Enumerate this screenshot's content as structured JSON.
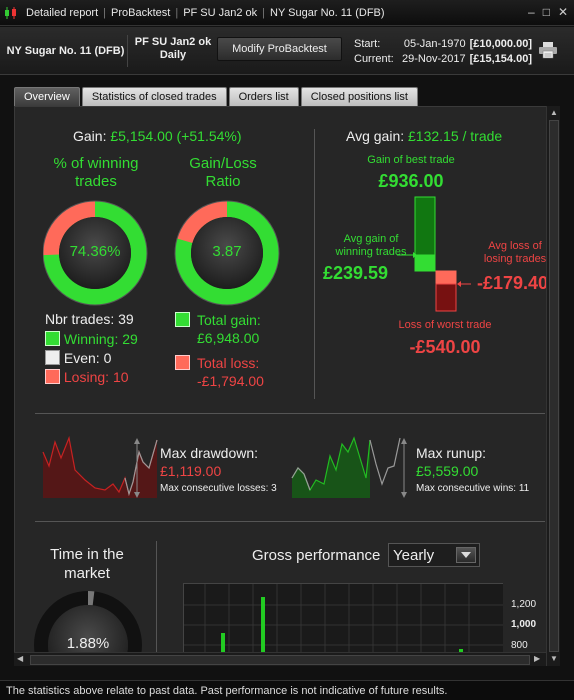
{
  "titlebar": {
    "segments": [
      "Detailed report",
      "ProBacktest",
      "PF SU Jan2 ok",
      "NY Sugar No. 11 (DFB)"
    ]
  },
  "infobar": {
    "instrument": "NY Sugar No. 11 (DFB)",
    "strategy_line1": "PF SU Jan2 ok",
    "strategy_line2": "Daily",
    "modify_button": "Modify ProBacktest",
    "start_label": "Start:",
    "start_date": "05-Jan-1970",
    "start_amount": "[£10,000.00]",
    "current_label": "Current:",
    "current_date": "29-Nov-2017",
    "current_amount": "[£15,154.00]"
  },
  "tabs": [
    "Overview",
    "Statistics of closed trades",
    "Orders list",
    "Closed positions list"
  ],
  "overview": {
    "gain_label": "Gain:",
    "gain_value": "£5,154.00 (+51.54%)",
    "pct_winning_label": "% of winning trades",
    "win_ratio_label": "Gain/Loss Ratio",
    "pct_winning_value": "74.36%",
    "pct_winning": 0.7436,
    "gain_loss_ratio_value": "3.87",
    "gain_share": 0.795,
    "nbr_trades_label": "Nbr trades:",
    "nbr_trades": "39",
    "winning_label": "Winning:",
    "winning": "29",
    "even_label": "Even:",
    "even": "0",
    "losing_label": "Losing:",
    "losing": "10",
    "total_gain_label": "Total gain:",
    "total_gain": "£6,948.00",
    "total_loss_label": "Total loss:",
    "total_loss": "-£1,794.00",
    "avg_gain_label": "Avg gain:",
    "avg_gain_value": "£132.15 / trade",
    "best_trade_label": "Gain of best trade",
    "best_trade": "£936.00",
    "avg_win_label": "Avg gain of winning trades",
    "avg_win": "£239.59",
    "avg_loss_label": "Avg loss of losing trades",
    "avg_loss": "-£179.40",
    "worst_trade_label": "Loss of worst trade",
    "worst_trade": "-£540.00",
    "max_drawdown_label": "Max drawdown:",
    "max_drawdown": "£1,119.00",
    "max_consec_losses": "Max consecutive losses: 3",
    "max_runup_label": "Max runup:",
    "max_runup": "£5,559.00",
    "max_consec_wins": "Max consecutive wins: 11",
    "time_in_market_label": "Time in the market",
    "time_in_market": "1.88%",
    "time_in_market_fraction": 0.0188,
    "gross_perf_label": "Gross performance",
    "period_select": "Yearly",
    "gross_axis_ticks": [
      "1,200",
      "1,000",
      "800"
    ]
  },
  "footer": "The statistics above relate to past data. Past performance is not indicative of future results.",
  "colors": {
    "green": "#33dd33",
    "red": "#ee4444",
    "bar_green": "#22cc22",
    "loss_red": "#ff6a5a"
  }
}
